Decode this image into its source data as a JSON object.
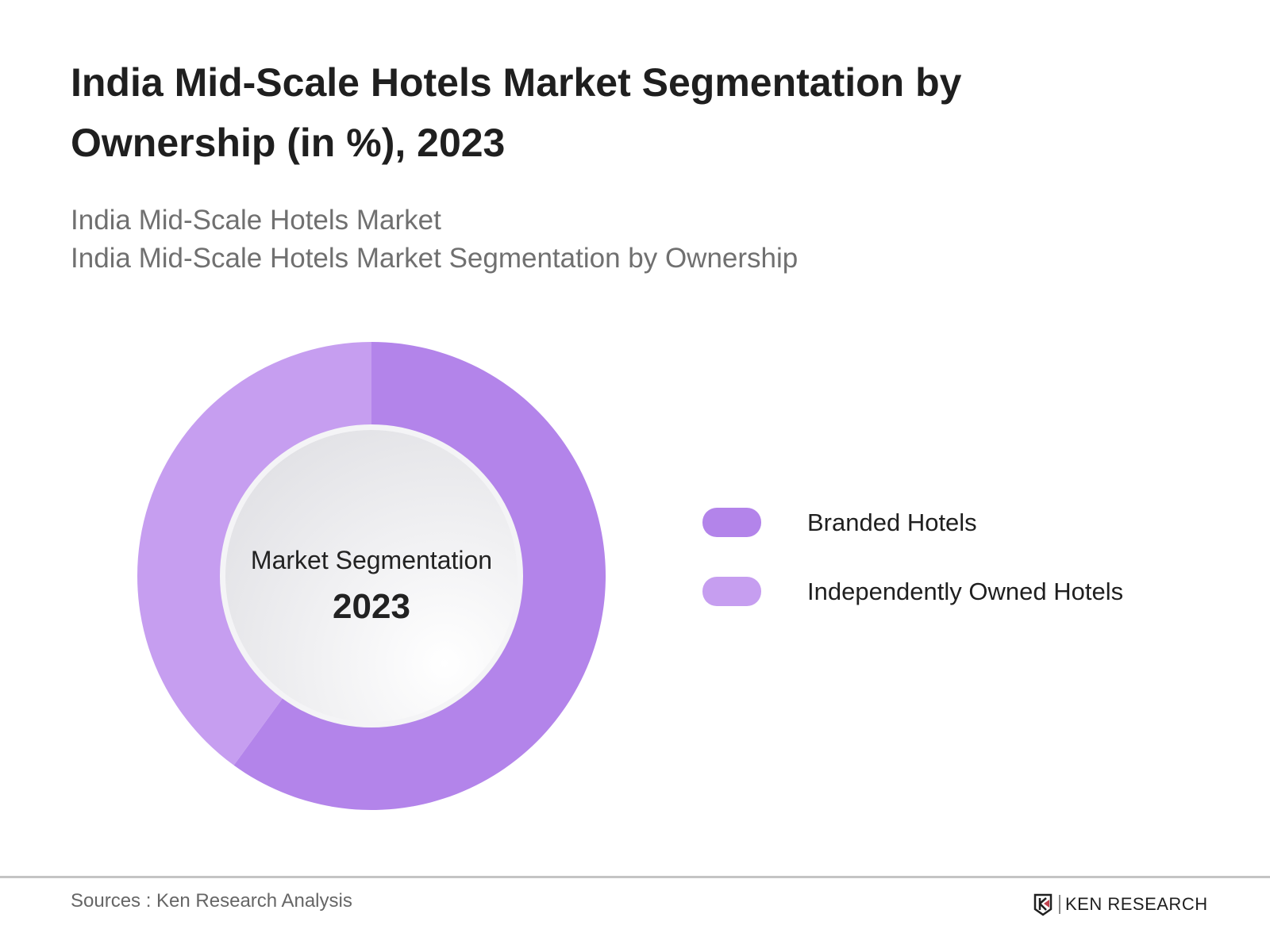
{
  "header": {
    "title": "India Mid-Scale Hotels Market Segmentation by Ownership (in %), 2023",
    "subtitle_1": "India Mid-Scale Hotels Market",
    "subtitle_2": "India Mid-Scale Hotels Market Segmentation by Ownership"
  },
  "chart_data": {
    "type": "pie",
    "variant": "donut",
    "categories": [
      "Branded Hotels",
      "Independently Owned Hotels"
    ],
    "values": [
      60,
      40
    ],
    "colors": [
      "#b384ea",
      "#c69ef0"
    ],
    "center_label": "Market Segmentation",
    "center_year": "2023",
    "legend_position": "right"
  },
  "footer": {
    "source": "Sources : Ken Research Analysis",
    "logo_text": "KEN RESEARCH"
  }
}
